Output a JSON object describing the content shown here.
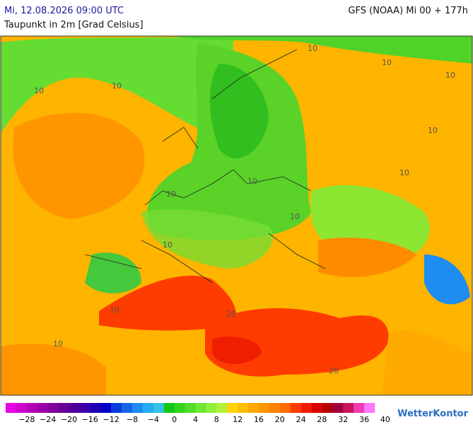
{
  "header": {
    "datetime": "Mi, 12.08.2026 09:00 UTC",
    "parameter": "Taupunkt in 2m [Grad Celsius]",
    "model": "GFS (NOAA) Mi 00 + 177h"
  },
  "map": {
    "contour_labels": [
      "10",
      "10",
      "10",
      "10",
      "10",
      "10",
      "10",
      "10",
      "10",
      "10",
      "10",
      "10",
      "10",
      "20",
      "20"
    ]
  },
  "colorbar": {
    "colors": [
      "#e600e6",
      "#cc00cc",
      "#b400b4",
      "#9a00a8",
      "#82009c",
      "#6a0096",
      "#50009a",
      "#3c00a8",
      "#1e00b4",
      "#0000c8",
      "#0a3cdc",
      "#1464e6",
      "#1e8cf0",
      "#28aaf0",
      "#32c3e6",
      "#14c814",
      "#32d21e",
      "#50dc28",
      "#6ee632",
      "#8cf03c",
      "#b4f03c",
      "#ffd200",
      "#ffbe00",
      "#ffaa00",
      "#ff9600",
      "#ff8200",
      "#ff6e00",
      "#ff3c00",
      "#f01e00",
      "#dc0000",
      "#b40000",
      "#a0003c",
      "#c8145a",
      "#f03cb4",
      "#ff78ff"
    ],
    "labels": [
      "−28",
      "−24",
      "−20",
      "−16",
      "−12",
      "−8",
      "−4",
      "0",
      "4",
      "8",
      "12",
      "16",
      "20",
      "24",
      "28",
      "32",
      "36",
      "40"
    ]
  },
  "logo": "WetterKontor"
}
